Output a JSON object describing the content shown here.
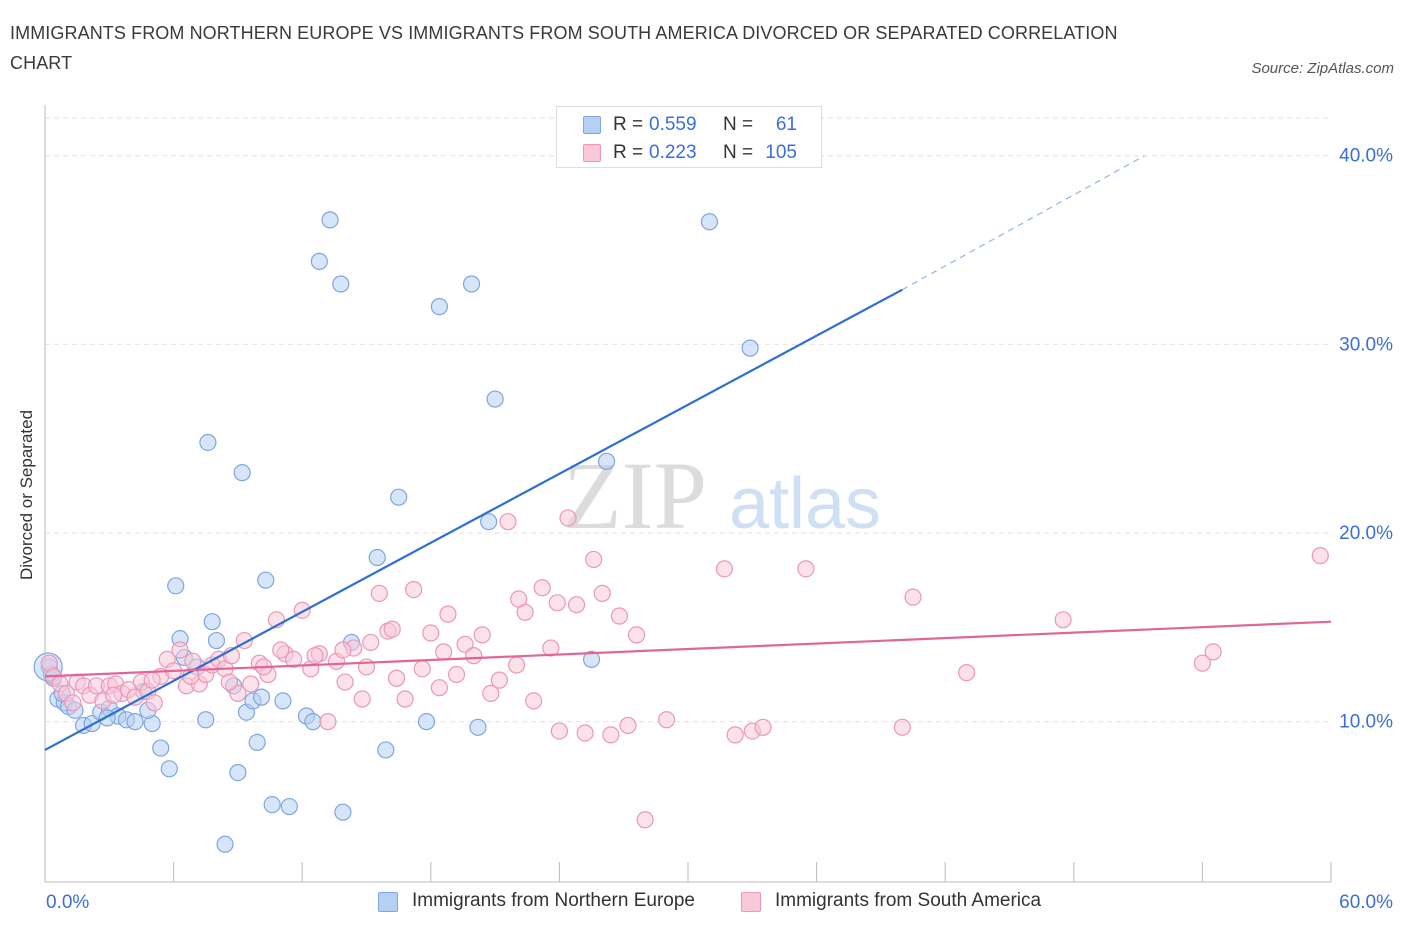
{
  "title": "IMMIGRANTS FROM NORTHERN EUROPE VS IMMIGRANTS FROM SOUTH AMERICA DIVORCED OR SEPARATED CORRELATION CHART",
  "source": "Source: ZipAtlas.com",
  "watermark": {
    "zip": "ZIP",
    "atlas": "atlas"
  },
  "legend": {
    "r_label": "R =",
    "n_label": "N =",
    "rows": [
      {
        "r": "0.559",
        "n": "61"
      },
      {
        "r": "0.223",
        "n": "105"
      }
    ]
  },
  "colors": {
    "blue_fill": "#b6d0f3",
    "blue_stroke": "#7fa6e0",
    "blue_line": "#2f6fcf",
    "pink_fill": "#f8c8d8",
    "pink_stroke": "#ec97b5",
    "pink_line": "#e0669a",
    "axis_label": "#3a6fd8",
    "grid": "#e2e2e2"
  },
  "chart_data": {
    "type": "scatter",
    "title": "IMMIGRANTS FROM NORTHERN EUROPE VS IMMIGRANTS FROM SOUTH AMERICA DIVORCED OR SEPARATED CORRELATION CHART",
    "xlabel": "",
    "ylabel": "Divorced or Separated",
    "xlim": [
      0,
      60
    ],
    "ylim": [
      1.5,
      42
    ],
    "x_tick_labels": [
      "0.0%",
      "60.0%"
    ],
    "y_ticks": [
      10,
      20,
      30,
      40
    ],
    "y_tick_labels": [
      "10.0%",
      "20.0%",
      "30.0%",
      "40.0%"
    ],
    "grid": true,
    "legend_position": "top-center and bottom",
    "series": [
      {
        "name": "Immigrants from Northern Europe",
        "color": "#7fa6e0",
        "points": [
          [
            0.2,
            12.9
          ],
          [
            0.4,
            12.3
          ],
          [
            0.6,
            11.2
          ],
          [
            0.9,
            11.0
          ],
          [
            1.1,
            10.8
          ],
          [
            1.4,
            10.6
          ],
          [
            1.8,
            9.8
          ],
          [
            2.2,
            9.9
          ],
          [
            2.6,
            10.5
          ],
          [
            3.0,
            10.7
          ],
          [
            3.4,
            10.3
          ],
          [
            3.8,
            10.1
          ],
          [
            4.2,
            10.0
          ],
          [
            4.6,
            11.6
          ],
          [
            5.0,
            9.9
          ],
          [
            5.4,
            8.6
          ],
          [
            5.8,
            7.5
          ],
          [
            6.1,
            17.2
          ],
          [
            6.3,
            14.4
          ],
          [
            6.5,
            13.4
          ],
          [
            7.1,
            12.9
          ],
          [
            7.5,
            10.1
          ],
          [
            7.6,
            24.8
          ],
          [
            7.8,
            15.3
          ],
          [
            8.0,
            14.3
          ],
          [
            8.4,
            3.5
          ],
          [
            8.8,
            11.9
          ],
          [
            9.0,
            7.3
          ],
          [
            9.2,
            23.2
          ],
          [
            9.4,
            10.5
          ],
          [
            9.7,
            11.1
          ],
          [
            9.9,
            8.9
          ],
          [
            10.1,
            11.3
          ],
          [
            10.3,
            17.5
          ],
          [
            10.6,
            5.6
          ],
          [
            11.1,
            11.1
          ],
          [
            11.4,
            5.5
          ],
          [
            12.2,
            10.3
          ],
          [
            12.5,
            10.0
          ],
          [
            12.8,
            34.4
          ],
          [
            13.3,
            36.6
          ],
          [
            13.8,
            33.2
          ],
          [
            13.9,
            5.2
          ],
          [
            14.3,
            14.2
          ],
          [
            15.5,
            18.7
          ],
          [
            15.9,
            8.5
          ],
          [
            16.5,
            21.9
          ],
          [
            17.8,
            10.0
          ],
          [
            18.4,
            32.0
          ],
          [
            19.9,
            33.2
          ],
          [
            20.2,
            9.7
          ],
          [
            20.7,
            20.6
          ],
          [
            21.0,
            27.1
          ],
          [
            25.5,
            13.3
          ],
          [
            26.2,
            23.8
          ],
          [
            31.0,
            36.5
          ],
          [
            32.9,
            29.8
          ],
          [
            0.3,
            12.5
          ],
          [
            0.8,
            11.5
          ],
          [
            2.9,
            10.2
          ],
          [
            4.8,
            10.6
          ]
        ]
      },
      {
        "name": "Immigrants from South America",
        "color": "#ec97b5",
        "points": [
          [
            0.2,
            13.1
          ],
          [
            0.4,
            12.4
          ],
          [
            0.7,
            12.0
          ],
          [
            1.0,
            11.5
          ],
          [
            1.3,
            11.0
          ],
          [
            1.5,
            12.1
          ],
          [
            1.8,
            11.9
          ],
          [
            2.1,
            11.4
          ],
          [
            2.4,
            11.9
          ],
          [
            2.7,
            11.1
          ],
          [
            3.0,
            11.9
          ],
          [
            3.3,
            12.0
          ],
          [
            3.6,
            11.5
          ],
          [
            3.9,
            11.7
          ],
          [
            4.2,
            11.3
          ],
          [
            4.5,
            12.1
          ],
          [
            4.8,
            11.6
          ],
          [
            5.1,
            11.0
          ],
          [
            5.4,
            12.4
          ],
          [
            5.7,
            13.3
          ],
          [
            6.0,
            12.7
          ],
          [
            6.3,
            13.8
          ],
          [
            6.6,
            11.9
          ],
          [
            6.9,
            13.2
          ],
          [
            7.2,
            12.0
          ],
          [
            7.5,
            12.5
          ],
          [
            7.8,
            13.0
          ],
          [
            8.1,
            13.3
          ],
          [
            8.4,
            12.8
          ],
          [
            8.7,
            13.5
          ],
          [
            9.0,
            11.5
          ],
          [
            9.3,
            14.3
          ],
          [
            9.6,
            12.0
          ],
          [
            10.0,
            13.1
          ],
          [
            10.4,
            12.5
          ],
          [
            10.8,
            15.4
          ],
          [
            11.2,
            13.6
          ],
          [
            11.6,
            13.3
          ],
          [
            12.0,
            15.9
          ],
          [
            12.4,
            12.8
          ],
          [
            12.8,
            13.6
          ],
          [
            13.2,
            10.0
          ],
          [
            13.6,
            13.2
          ],
          [
            14.0,
            12.1
          ],
          [
            14.4,
            13.9
          ],
          [
            14.8,
            11.2
          ],
          [
            15.2,
            14.2
          ],
          [
            15.6,
            16.8
          ],
          [
            16.0,
            14.8
          ],
          [
            16.4,
            12.3
          ],
          [
            16.8,
            11.2
          ],
          [
            17.2,
            17.0
          ],
          [
            17.6,
            12.8
          ],
          [
            18.0,
            14.7
          ],
          [
            18.4,
            11.8
          ],
          [
            18.8,
            15.7
          ],
          [
            19.2,
            12.5
          ],
          [
            19.6,
            14.1
          ],
          [
            20.0,
            13.5
          ],
          [
            20.4,
            14.6
          ],
          [
            20.8,
            11.5
          ],
          [
            21.2,
            12.2
          ],
          [
            21.6,
            20.6
          ],
          [
            22.0,
            13.0
          ],
          [
            22.4,
            15.8
          ],
          [
            22.8,
            11.1
          ],
          [
            23.2,
            17.1
          ],
          [
            23.6,
            13.9
          ],
          [
            24.0,
            9.5
          ],
          [
            24.4,
            20.8
          ],
          [
            24.8,
            16.2
          ],
          [
            25.2,
            9.4
          ],
          [
            25.6,
            18.6
          ],
          [
            26.0,
            16.8
          ],
          [
            26.4,
            9.3
          ],
          [
            26.8,
            15.6
          ],
          [
            27.2,
            9.8
          ],
          [
            27.6,
            14.6
          ],
          [
            28.0,
            4.8
          ],
          [
            29.0,
            10.1
          ],
          [
            31.7,
            18.1
          ],
          [
            32.2,
            9.3
          ],
          [
            33.0,
            9.5
          ],
          [
            33.5,
            9.7
          ],
          [
            35.5,
            18.1
          ],
          [
            40.0,
            9.7
          ],
          [
            40.5,
            16.6
          ],
          [
            43.0,
            12.6
          ],
          [
            47.5,
            15.4
          ],
          [
            54.0,
            13.1
          ],
          [
            54.5,
            13.7
          ],
          [
            59.5,
            18.8
          ],
          [
            3.2,
            11.4
          ],
          [
            5.0,
            12.2
          ],
          [
            6.8,
            12.4
          ],
          [
            8.6,
            12.1
          ],
          [
            11.0,
            13.8
          ],
          [
            13.9,
            13.8
          ],
          [
            16.2,
            14.9
          ],
          [
            18.6,
            13.7
          ],
          [
            22.1,
            16.5
          ],
          [
            23.9,
            16.3
          ],
          [
            12.6,
            13.5
          ],
          [
            10.2,
            12.9
          ],
          [
            15.0,
            12.9
          ]
        ]
      }
    ],
    "trendlines": [
      {
        "series": "Immigrants from Northern Europe",
        "solid": [
          [
            0,
            8.5
          ],
          [
            40,
            32.9
          ]
        ],
        "dashed": [
          [
            40,
            32.9
          ],
          [
            51.3,
            40.0
          ]
        ]
      },
      {
        "series": "Immigrants from South America",
        "solid": [
          [
            0,
            12.4
          ],
          [
            60,
            15.3
          ]
        ]
      }
    ]
  }
}
